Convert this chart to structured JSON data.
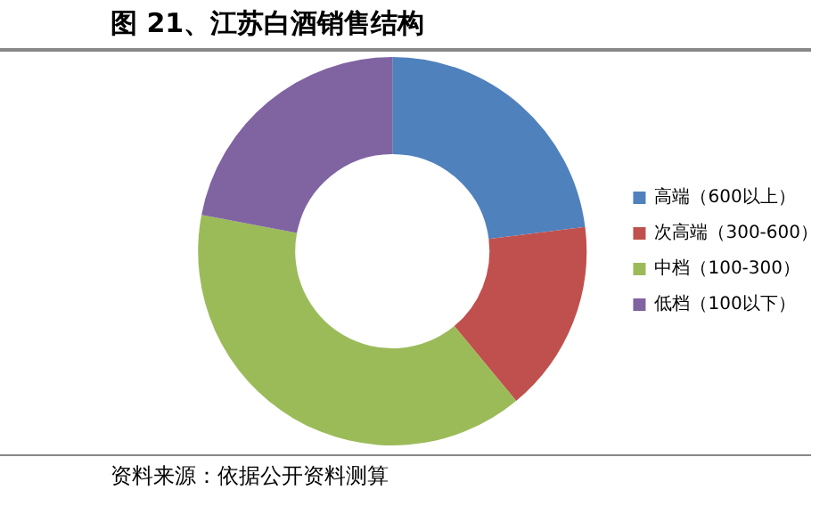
{
  "chart_data": {
    "type": "donut",
    "title": "图 21、江苏白酒销售结构",
    "categories": [
      "高端（600以上）",
      "次高端（300-600）",
      "中档（100-300）",
      "低档（100以下）"
    ],
    "values": [
      23,
      16,
      39,
      22
    ],
    "colors": [
      "#4f81bd",
      "#c0504d",
      "#9bbb59",
      "#8064a2"
    ],
    "legend": "right",
    "annotations": [
      "资料来源：依据公开资料测算"
    ]
  }
}
